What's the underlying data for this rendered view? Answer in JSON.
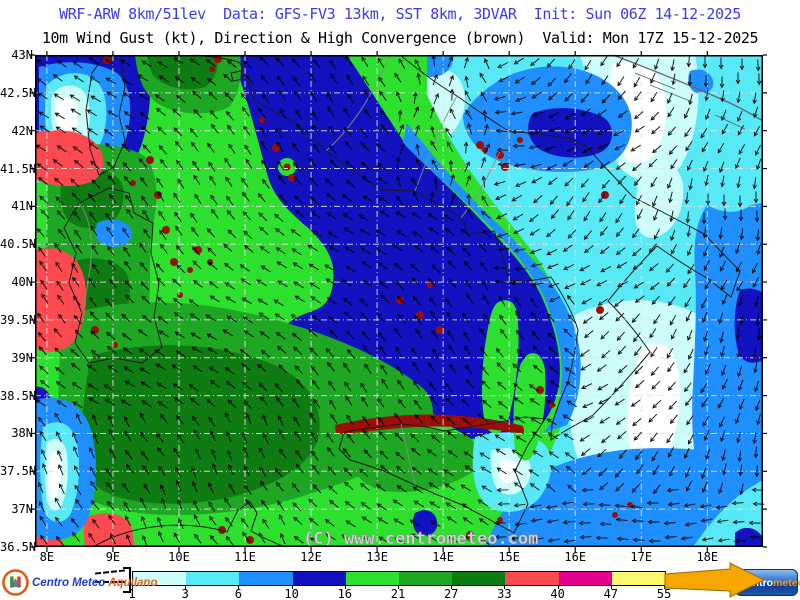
{
  "header": {
    "line1": "WRF-ARW 8km/51lev  Data: GFS-FV3 13km, SST 8km, 3DVAR  Init: Sun 06Z 14-12-2025",
    "line2": "10m Wind Gust (kt), Direction & High Convergence (brown)  Valid: Mon 17Z 15-12-2025"
  },
  "map": {
    "x_ticks": [
      "8E",
      "9E",
      "10E",
      "11E",
      "12E",
      "13E",
      "14E",
      "15E",
      "16E",
      "17E",
      "18E"
    ],
    "y_ticks": [
      "43N",
      "42.5N",
      "42N",
      "41.5N",
      "41N",
      "40.5N",
      "40N",
      "39.5N",
      "39N",
      "38.5N",
      "38N",
      "37.5N",
      "37N",
      "36.5N"
    ],
    "watermark": "(C) www.centrometeo.com",
    "convergence_color": "#9a0f0a"
  },
  "colorbar": {
    "values": [
      "1",
      "3",
      "6",
      "10",
      "16",
      "21",
      "27",
      "33",
      "40",
      "47",
      "55"
    ],
    "colors": [
      "#cdfdfb",
      "#58e9f7",
      "#1e8ffc",
      "#1212c0",
      "#2ee02e",
      "#1ea722",
      "#0e7c12",
      "#fb4b50",
      "#e6008e",
      "#fbf86e"
    ],
    "overflow_arrow_color": "#f7a600"
  },
  "logos": {
    "left": {
      "word1": "Centro",
      "word2": "Meteo",
      "word3": "Aquilano"
    },
    "right": {
      "word1": "centro",
      "word2": "meteo"
    }
  }
}
